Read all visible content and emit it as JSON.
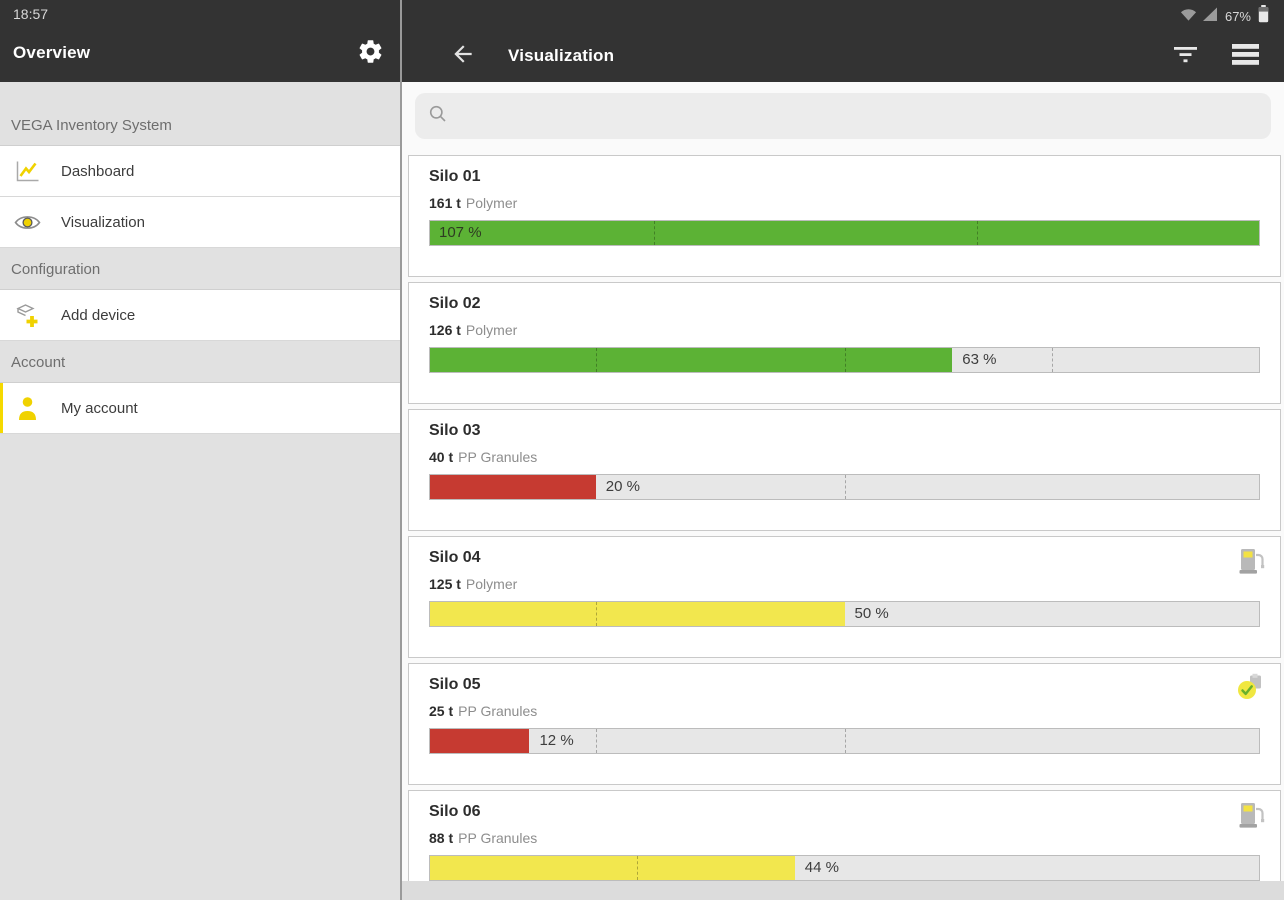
{
  "statusbar": {
    "time": "18:57",
    "battery_percent": "67%",
    "icons": [
      "network-icon",
      "signal-icon",
      "battery-icon"
    ]
  },
  "left_panel": {
    "title": "Overview",
    "header_icon": "gear-icon",
    "sections": [
      {
        "label": "VEGA Inventory System"
      },
      {
        "label": "Configuration"
      },
      {
        "label": "Account"
      }
    ],
    "items": [
      {
        "label": "Dashboard",
        "icon": "line-chart-icon"
      },
      {
        "label": "Visualization",
        "icon": "eye-icon"
      },
      {
        "label": "Add device",
        "icon": "add-device-icon"
      },
      {
        "label": "My account",
        "icon": "person-icon"
      }
    ]
  },
  "right_panel": {
    "title": "Visualization",
    "header_icons": [
      "back-arrow-icon",
      "filter-icon",
      "menu-icon"
    ],
    "search": {
      "value": "",
      "placeholder": ""
    }
  },
  "silos": [
    {
      "name": "Silo 01",
      "amount": "161 t",
      "material": "Polymer",
      "percent": 107,
      "percent_label": "107 %",
      "status": "green",
      "markers": [
        27,
        66
      ],
      "icon": "none"
    },
    {
      "name": "Silo 02",
      "amount": "126 t",
      "material": "Polymer",
      "percent": 63,
      "percent_label": "63 %",
      "status": "green",
      "markers": [
        20,
        50,
        75
      ],
      "icon": "none"
    },
    {
      "name": "Silo 03",
      "amount": "40 t",
      "material": "PP Granules",
      "percent": 20,
      "percent_label": "20 %",
      "status": "red",
      "markers": [
        50
      ],
      "icon": "none"
    },
    {
      "name": "Silo 04",
      "amount": "125 t",
      "material": "Polymer",
      "percent": 50,
      "percent_label": "50 %",
      "status": "yellow",
      "markers": [
        20
      ],
      "icon": "delivery-note-icon"
    },
    {
      "name": "Silo 05",
      "amount": "25 t",
      "material": "PP Granules",
      "percent": 12,
      "percent_label": "12 %",
      "status": "red",
      "markers": [
        20,
        50
      ],
      "icon": "order-check-icon"
    },
    {
      "name": "Silo 06",
      "amount": "88 t",
      "material": "PP Granules",
      "percent": 44,
      "percent_label": "44 %",
      "status": "yellow",
      "markers": [
        25
      ],
      "icon": "delivery-note-icon"
    }
  ],
  "colors": {
    "green": "#5cb235",
    "red": "#c63a31",
    "yellow": "#f2e74e",
    "accent": "#f5d900"
  }
}
